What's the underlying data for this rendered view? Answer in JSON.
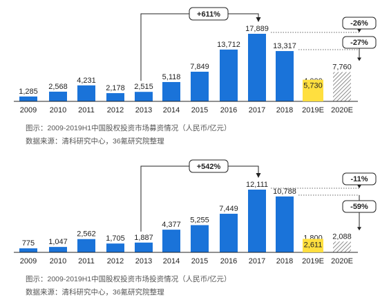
{
  "colors": {
    "bar": "#1a73d9",
    "estimate_hatch": "#6f6f6f",
    "highlight": "#ffdf3f",
    "axis": "#222222",
    "text": "#222222",
    "caption": "#555555"
  },
  "chart_data": [
    {
      "type": "bar",
      "title": "图示：2009-2019H1中国股权投资市场募资情况（人民币/亿元）",
      "source": "数据来源：清科研究中心，36氪研究院整理",
      "categories": [
        "2009",
        "2010",
        "2011",
        "2012",
        "2013",
        "2014",
        "2015",
        "2016",
        "2017",
        "2018",
        "2019E",
        "2020E"
      ],
      "values": [
        1285,
        2568,
        4231,
        2178,
        2515,
        5118,
        7849,
        13712,
        17889,
        13317,
        4000,
        7760
      ],
      "value_labels": [
        "1,285",
        "2,568",
        "4,231",
        "2,178",
        "2,515",
        "5,118",
        "7,849",
        "13,712",
        "17,889",
        "13,317",
        "4,000",
        "7,760"
      ],
      "estimate_categories": [
        "2019E",
        "2020E"
      ],
      "highlight": {
        "label": "5,730",
        "value": 5730
      },
      "annotations": [
        {
          "label": "+611%",
          "from": "2013",
          "to": "2017"
        },
        {
          "label": "-26%",
          "from": "2017",
          "to": "2018"
        },
        {
          "label": "-27%",
          "from": "2018",
          "to": "2020E"
        }
      ]
    },
    {
      "type": "bar",
      "title": "图示：2009-2019H1中国股权投资市场投资情况（人民币/亿元）",
      "source": "数据来源：清科研究中心，36氪研究院整理",
      "categories": [
        "2009",
        "2010",
        "2011",
        "2012",
        "2013",
        "2014",
        "2015",
        "2016",
        "2017",
        "2018",
        "2019E",
        "2020E"
      ],
      "values": [
        775,
        1047,
        2562,
        1705,
        1887,
        4377,
        5255,
        7449,
        12111,
        10788,
        1800,
        2088
      ],
      "value_labels": [
        "775",
        "1,047",
        "2,562",
        "1,705",
        "1,887",
        "4,377",
        "5,255",
        "7,449",
        "12,111",
        "10,788",
        "1,800",
        "2,088"
      ],
      "estimate_categories": [
        "2019E",
        "2020E"
      ],
      "highlight": {
        "label": "2,611",
        "value": 2611
      },
      "annotations": [
        {
          "label": "+542%",
          "from": "2013",
          "to": "2017"
        },
        {
          "label": "-11%",
          "from": "2017",
          "to": "2018"
        },
        {
          "label": "-59%",
          "from": "2018",
          "to": "2020E"
        }
      ]
    }
  ]
}
